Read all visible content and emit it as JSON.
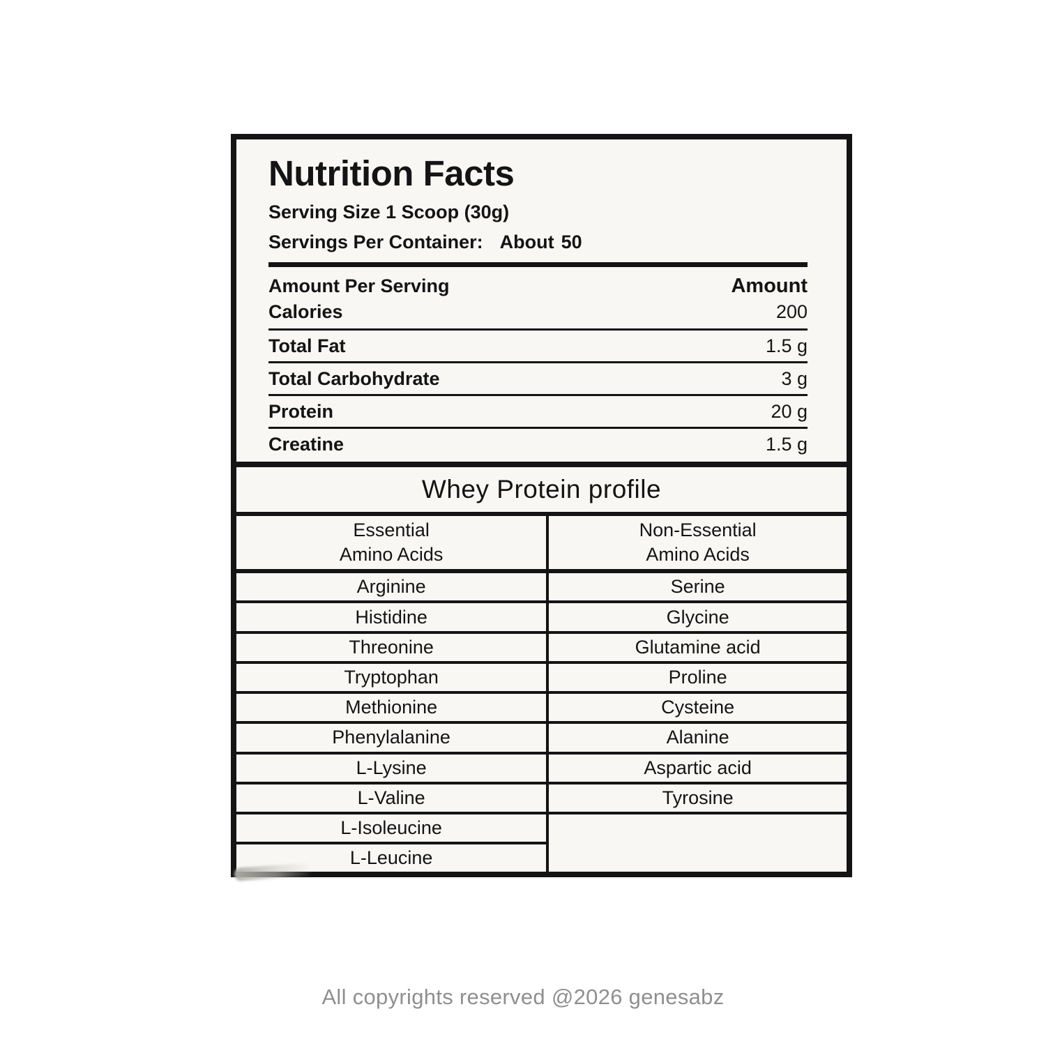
{
  "nutrition_facts": {
    "title": "Nutrition Facts",
    "serving_size": "Serving Size 1 Scoop (30g)",
    "servings_per_container_label": "Servings Per Container:",
    "servings_per_container_word": "About",
    "servings_per_container_number": "50",
    "column_left_header": "Amount Per Serving",
    "column_right_header": "Amount",
    "rows": [
      {
        "label": "Calories",
        "value": "200"
      },
      {
        "label": "Total Fat",
        "value": "1.5 g"
      },
      {
        "label": "Total Carbohydrate",
        "value": "3 g"
      },
      {
        "label": "Protein",
        "value": "20 g"
      },
      {
        "label": "Creatine",
        "value": "1.5 g"
      }
    ]
  },
  "protein_profile": {
    "title": "Whey Protein profile",
    "essential_header_line1": "Essential",
    "essential_header_line2": "Amino Acids",
    "non_essential_header_line1": "Non-Essential",
    "non_essential_header_line2": "Amino Acids",
    "essential": [
      "Arginine",
      "Histidine",
      "Threonine",
      "Tryptophan",
      "Methionine",
      "Phenylalanine",
      "L-Lysine",
      "L-Valine",
      "L-Isoleucine",
      "L-Leucine"
    ],
    "non_essential": [
      "Serine",
      "Glycine",
      "Glutamine acid",
      "Proline",
      "Cysteine",
      "Alanine",
      "Aspartic acid",
      "Tyrosine"
    ]
  },
  "footer": {
    "copyright": "All copyrights reserved @2026 genesabz"
  },
  "colors": {
    "label_background": "#f8f7f4",
    "border": "#141414",
    "footer_text": "#8f8f8f"
  }
}
